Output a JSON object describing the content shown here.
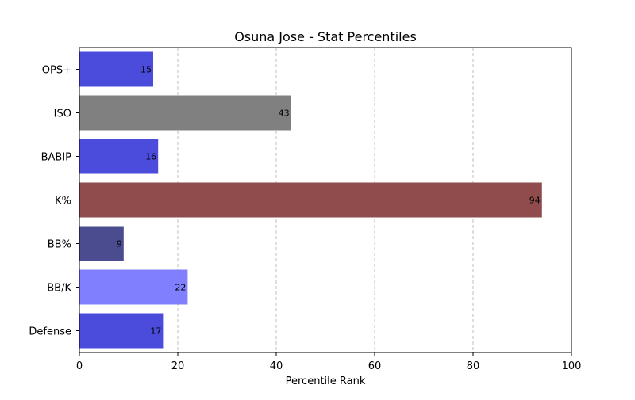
{
  "chart_data": {
    "type": "bar",
    "orientation": "horizontal",
    "title": "Osuna Jose - Stat Percentiles",
    "xlabel": "Percentile Rank",
    "ylabel": "",
    "xlim": [
      0,
      100
    ],
    "xticks": [
      0,
      20,
      40,
      60,
      80,
      100
    ],
    "grid": {
      "x": true,
      "style": "dashed"
    },
    "legend": null,
    "categories": [
      "OPS+",
      "ISO",
      "BABIP",
      "K%",
      "BB%",
      "BB/K",
      "Defense"
    ],
    "values": [
      15,
      43,
      16,
      94,
      9,
      22,
      17
    ],
    "colors": [
      "#4b4bdc",
      "#808080",
      "#4b4bdc",
      "#904c4c",
      "#4b4b90",
      "#8080ff",
      "#4b4bdc"
    ]
  }
}
